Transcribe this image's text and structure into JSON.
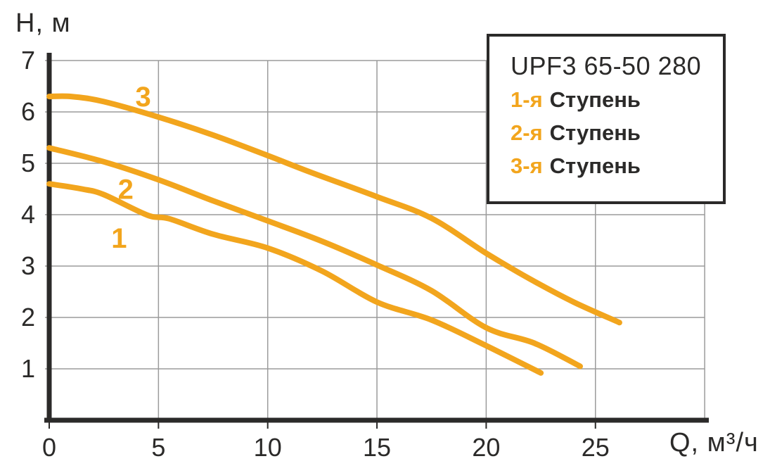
{
  "colors": {
    "curve_orange": "#f2a51d",
    "axis_dark": "#2b2a29",
    "grid_gray": "#9b9b9b",
    "text_dark": "#2b2a29",
    "background": "#ffffff"
  },
  "axes": {
    "y_title": "H, м",
    "x_title": "Q, м³/ч",
    "x_tick_labels": [
      "0",
      "5",
      "10",
      "15",
      "20",
      "25"
    ],
    "y_tick_labels": [
      "1",
      "2",
      "3",
      "4",
      "5",
      "6",
      "7"
    ]
  },
  "legend": {
    "title": "UPF3 65-50 280",
    "items": [
      {
        "stage": "1-я",
        "label": "Ступень"
      },
      {
        "stage": "2-я",
        "label": "Ступень"
      },
      {
        "stage": "3-я",
        "label": "Ступень"
      }
    ]
  },
  "chart_data": {
    "type": "line",
    "title": "UPF3 65-50 280",
    "xlabel": "Q, м³/ч",
    "ylabel": "H, м",
    "xlim": [
      0,
      30
    ],
    "ylim": [
      0,
      7
    ],
    "x_ticks": [
      0,
      5,
      10,
      15,
      20,
      25
    ],
    "y_ticks": [
      1,
      2,
      3,
      4,
      5,
      6,
      7
    ],
    "grid": true,
    "legend_position": "top-right",
    "series": [
      {
        "name": "1-я Ступень",
        "curve_label": "1",
        "label_anchor": {
          "q": 3.2,
          "h": 3.55
        },
        "points": [
          [
            0,
            4.6
          ],
          [
            1.5,
            4.5
          ],
          [
            2.5,
            4.39
          ],
          [
            4.5,
            3.99
          ],
          [
            5.5,
            3.92
          ],
          [
            7.5,
            3.62
          ],
          [
            10,
            3.35
          ],
          [
            12.5,
            2.9
          ],
          [
            15,
            2.3
          ],
          [
            17.5,
            1.95
          ],
          [
            20,
            1.45
          ],
          [
            22.5,
            0.92
          ]
        ]
      },
      {
        "name": "2-я Ступень",
        "curve_label": "2",
        "label_anchor": {
          "q": 3.5,
          "h": 4.5
        },
        "points": [
          [
            0,
            5.3
          ],
          [
            2.5,
            5.03
          ],
          [
            5,
            4.68
          ],
          [
            7.5,
            4.27
          ],
          [
            10,
            3.88
          ],
          [
            12.5,
            3.48
          ],
          [
            15,
            3.02
          ],
          [
            17.5,
            2.52
          ],
          [
            20,
            1.8
          ],
          [
            22.2,
            1.5
          ],
          [
            24.3,
            1.05
          ]
        ]
      },
      {
        "name": "3-я Ступень",
        "curve_label": "3",
        "label_anchor": {
          "q": 4.3,
          "h": 6.3
        },
        "points": [
          [
            0,
            6.3
          ],
          [
            1,
            6.3
          ],
          [
            2.5,
            6.2
          ],
          [
            5,
            5.9
          ],
          [
            7.5,
            5.55
          ],
          [
            10,
            5.15
          ],
          [
            12,
            4.82
          ],
          [
            15,
            4.35
          ],
          [
            17.5,
            3.93
          ],
          [
            20,
            3.25
          ],
          [
            22,
            2.75
          ],
          [
            24,
            2.3
          ],
          [
            26.1,
            1.9
          ]
        ]
      }
    ]
  }
}
